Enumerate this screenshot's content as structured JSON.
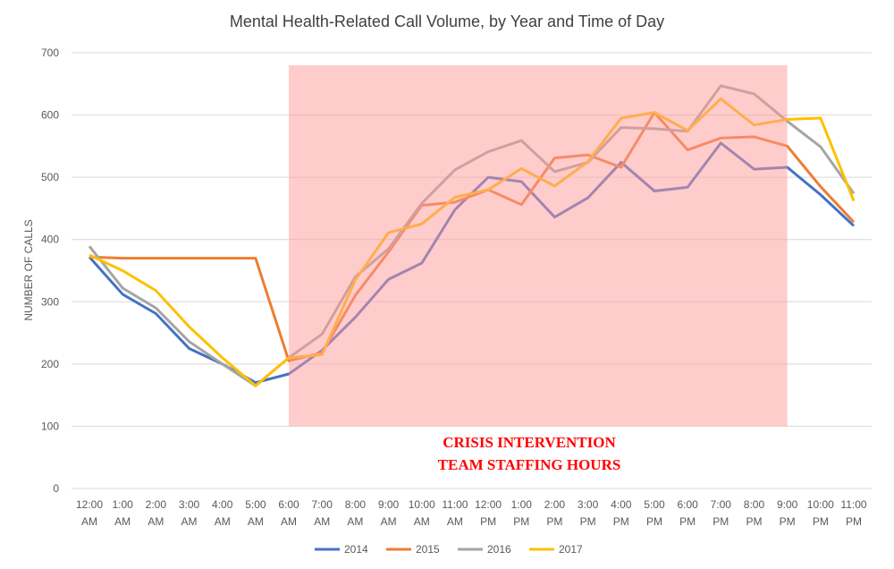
{
  "chart_data": {
    "type": "line",
    "title": "Mental Health-Related Call Volume, by Year and Time of Day",
    "xlabel": "",
    "ylabel": "NUMBER OF CALLS",
    "ylim": [
      0,
      700
    ],
    "yticks": [
      0,
      100,
      200,
      300,
      400,
      500,
      600,
      700
    ],
    "grid": true,
    "legend_position": "bottom",
    "categories": [
      [
        "12:00",
        "AM"
      ],
      [
        "1:00",
        "AM"
      ],
      [
        "2:00",
        "AM"
      ],
      [
        "3:00",
        "AM"
      ],
      [
        "4:00",
        "AM"
      ],
      [
        "5:00",
        "AM"
      ],
      [
        "6:00",
        "AM"
      ],
      [
        "7:00",
        "AM"
      ],
      [
        "8:00",
        "AM"
      ],
      [
        "9:00",
        "AM"
      ],
      [
        "10:00",
        "AM"
      ],
      [
        "11:00",
        "AM"
      ],
      [
        "12:00",
        "PM"
      ],
      [
        "1:00",
        "PM"
      ],
      [
        "2:00",
        "PM"
      ],
      [
        "3:00",
        "PM"
      ],
      [
        "4:00",
        "PM"
      ],
      [
        "5:00",
        "PM"
      ],
      [
        "6:00",
        "PM"
      ],
      [
        "7:00",
        "PM"
      ],
      [
        "8:00",
        "PM"
      ],
      [
        "9:00",
        "PM"
      ],
      [
        "10:00",
        "PM"
      ],
      [
        "11:00",
        "PM"
      ]
    ],
    "series": [
      {
        "name": "2014",
        "color": "#4472c4",
        "values": [
          372,
          312,
          281,
          225,
          200,
          170,
          184,
          222,
          275,
          336,
          362,
          448,
          500,
          493,
          436,
          467,
          524,
          478,
          484,
          555,
          513,
          516,
          472,
          422
        ]
      },
      {
        "name": "2015",
        "color": "#ed7d31",
        "values": [
          372,
          370,
          370,
          370,
          370,
          370,
          205,
          218,
          310,
          380,
          455,
          460,
          480,
          456,
          531,
          536,
          516,
          604,
          544,
          563,
          565,
          550,
          485,
          428
        ]
      },
      {
        "name": "2016",
        "color": "#a5a5a5",
        "values": [
          389,
          322,
          290,
          236,
          200,
          165,
          210,
          248,
          340,
          385,
          458,
          512,
          541,
          559,
          509,
          524,
          580,
          578,
          574,
          647,
          634,
          590,
          549,
          474
        ]
      },
      {
        "name": "2017",
        "color": "#ffc000",
        "values": [
          375,
          350,
          318,
          260,
          210,
          165,
          210,
          215,
          335,
          411,
          425,
          468,
          480,
          514,
          486,
          525,
          595,
          604,
          575,
          626,
          584,
          593,
          595,
          462
        ]
      }
    ],
    "highlight_region": {
      "from_category": "6:00 AM",
      "to_category": "9:00 PM",
      "y_top": 680,
      "color": "#ff9999",
      "label": [
        "CRISIS INTERVENTION",
        "TEAM STAFFING HOURS"
      ]
    }
  }
}
